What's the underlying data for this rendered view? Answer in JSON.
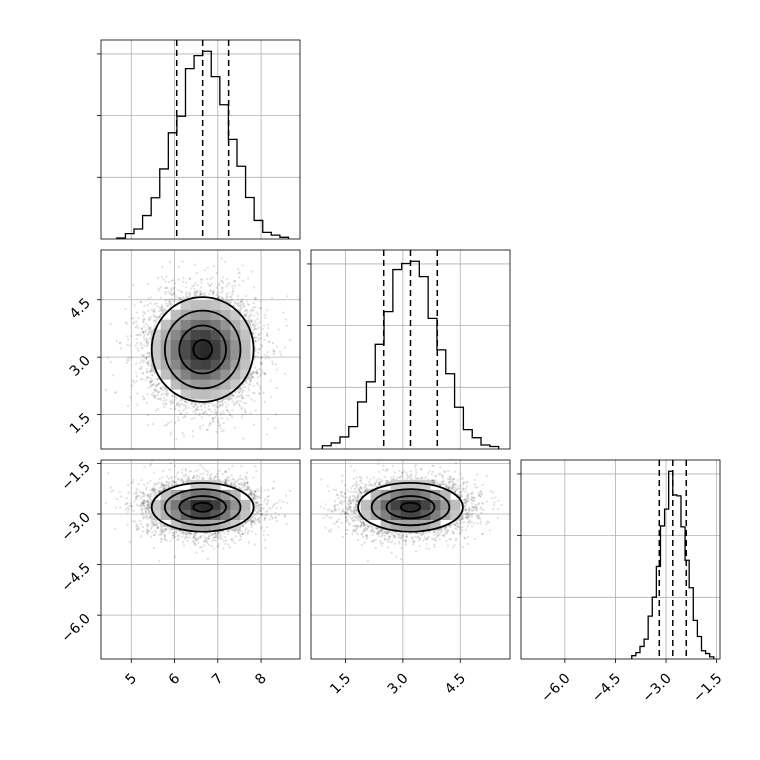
{
  "chart_data": {
    "type": "corner",
    "parameters": [
      {
        "mean": 6.65,
        "sd": 0.62,
        "range": [
          4.3,
          8.9
        ],
        "quantiles": [
          6.05,
          6.65,
          7.25
        ],
        "ticks": [
          5,
          6,
          7,
          8
        ],
        "tick_labels": [
          "5",
          "6",
          "7",
          "8"
        ]
      },
      {
        "mean": 3.2,
        "sd": 0.72,
        "range": [
          0.6,
          5.8
        ],
        "quantiles": [
          2.5,
          3.2,
          3.9
        ],
        "ticks": [
          1.5,
          3.0,
          4.5
        ],
        "tick_labels": [
          "1.5",
          "3.0",
          "4.5"
        ]
      },
      {
        "mean": -2.8,
        "sd": 0.38,
        "range": [
          -7.3,
          -1.4
        ],
        "quantiles": [
          -3.2,
          -2.8,
          -2.4
        ],
        "ticks": [
          -6.0,
          -4.5,
          -3.0,
          -1.5
        ],
        "tick_labels": [
          "−6.0",
          "−4.5",
          "−3.0",
          "−1.5"
        ]
      }
    ],
    "grid": true,
    "histogram_bins": 20,
    "contour_levels": 4
  }
}
